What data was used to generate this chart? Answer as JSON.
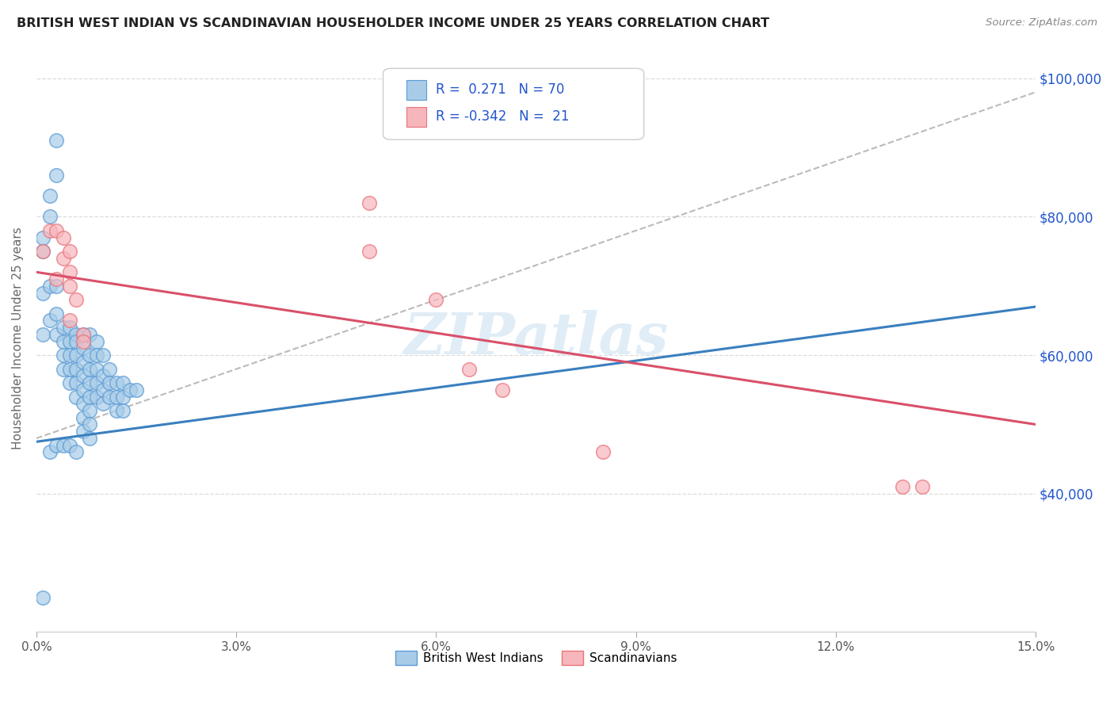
{
  "title": "BRITISH WEST INDIAN VS SCANDINAVIAN HOUSEHOLDER INCOME UNDER 25 YEARS CORRELATION CHART",
  "source": "Source: ZipAtlas.com",
  "ylabel": "Householder Income Under 25 years",
  "xlim": [
    0.0,
    0.15
  ],
  "ylim": [
    20000,
    105000
  ],
  "xticks": [
    0.0,
    0.03,
    0.06,
    0.09,
    0.12,
    0.15
  ],
  "xticklabels": [
    "0.0%",
    "3.0%",
    "6.0%",
    "9.0%",
    "12.0%",
    "15.0%"
  ],
  "yticks": [
    20000,
    40000,
    60000,
    80000,
    100000
  ],
  "yticklabels": [
    "",
    "$40,000",
    "$60,000",
    "$80,000",
    "$100,000"
  ],
  "blue_color": "#a8cce8",
  "pink_color": "#f7b6bc",
  "blue_edge": "#5b9bd5",
  "pink_edge": "#e8737a",
  "line_blue": "#3a7fbf",
  "line_pink": "#d9506a",
  "line_gray": "#bbbbbb",
  "watermark_color": "#c8dff0",
  "bwi_points": [
    [
      0.001,
      77000
    ],
    [
      0.001,
      75000
    ],
    [
      0.002,
      83000
    ],
    [
      0.002,
      80000
    ],
    [
      0.003,
      91000
    ],
    [
      0.003,
      86000
    ],
    [
      0.001,
      69000
    ],
    [
      0.002,
      70000
    ],
    [
      0.003,
      70000
    ],
    [
      0.001,
      63000
    ],
    [
      0.002,
      65000
    ],
    [
      0.003,
      66000
    ],
    [
      0.003,
      63000
    ],
    [
      0.004,
      64000
    ],
    [
      0.004,
      62000
    ],
    [
      0.004,
      60000
    ],
    [
      0.004,
      58000
    ],
    [
      0.005,
      64000
    ],
    [
      0.005,
      62000
    ],
    [
      0.005,
      60000
    ],
    [
      0.005,
      58000
    ],
    [
      0.005,
      56000
    ],
    [
      0.006,
      63000
    ],
    [
      0.006,
      62000
    ],
    [
      0.006,
      60000
    ],
    [
      0.006,
      58000
    ],
    [
      0.006,
      56000
    ],
    [
      0.006,
      54000
    ],
    [
      0.007,
      63000
    ],
    [
      0.007,
      61000
    ],
    [
      0.007,
      59000
    ],
    [
      0.007,
      57000
    ],
    [
      0.007,
      55000
    ],
    [
      0.007,
      53000
    ],
    [
      0.007,
      51000
    ],
    [
      0.007,
      49000
    ],
    [
      0.008,
      63000
    ],
    [
      0.008,
      60000
    ],
    [
      0.008,
      58000
    ],
    [
      0.008,
      56000
    ],
    [
      0.008,
      54000
    ],
    [
      0.008,
      52000
    ],
    [
      0.008,
      50000
    ],
    [
      0.008,
      48000
    ],
    [
      0.009,
      62000
    ],
    [
      0.009,
      60000
    ],
    [
      0.009,
      58000
    ],
    [
      0.009,
      56000
    ],
    [
      0.009,
      54000
    ],
    [
      0.01,
      60000
    ],
    [
      0.01,
      57000
    ],
    [
      0.01,
      55000
    ],
    [
      0.01,
      53000
    ],
    [
      0.011,
      58000
    ],
    [
      0.011,
      56000
    ],
    [
      0.011,
      54000
    ],
    [
      0.012,
      56000
    ],
    [
      0.012,
      54000
    ],
    [
      0.012,
      52000
    ],
    [
      0.013,
      56000
    ],
    [
      0.013,
      54000
    ],
    [
      0.013,
      52000
    ],
    [
      0.014,
      55000
    ],
    [
      0.015,
      55000
    ],
    [
      0.002,
      46000
    ],
    [
      0.003,
      47000
    ],
    [
      0.004,
      47000
    ],
    [
      0.005,
      47000
    ],
    [
      0.006,
      46000
    ],
    [
      0.001,
      25000
    ]
  ],
  "scan_points": [
    [
      0.001,
      75000
    ],
    [
      0.002,
      78000
    ],
    [
      0.003,
      78000
    ],
    [
      0.004,
      77000
    ],
    [
      0.003,
      71000
    ],
    [
      0.004,
      74000
    ],
    [
      0.005,
      75000
    ],
    [
      0.005,
      72000
    ],
    [
      0.005,
      70000
    ],
    [
      0.006,
      68000
    ],
    [
      0.005,
      65000
    ],
    [
      0.007,
      63000
    ],
    [
      0.007,
      62000
    ],
    [
      0.05,
      82000
    ],
    [
      0.05,
      75000
    ],
    [
      0.06,
      68000
    ],
    [
      0.065,
      58000
    ],
    [
      0.07,
      55000
    ],
    [
      0.085,
      46000
    ],
    [
      0.13,
      41000
    ],
    [
      0.133,
      41000
    ]
  ],
  "bwi_trendline": [
    [
      0.0,
      47500
    ],
    [
      0.15,
      67000
    ]
  ],
  "scan_trendline": [
    [
      0.0,
      72000
    ],
    [
      0.15,
      50000
    ]
  ],
  "gray_trendline": [
    [
      0.0,
      48000
    ],
    [
      0.15,
      98000
    ]
  ]
}
